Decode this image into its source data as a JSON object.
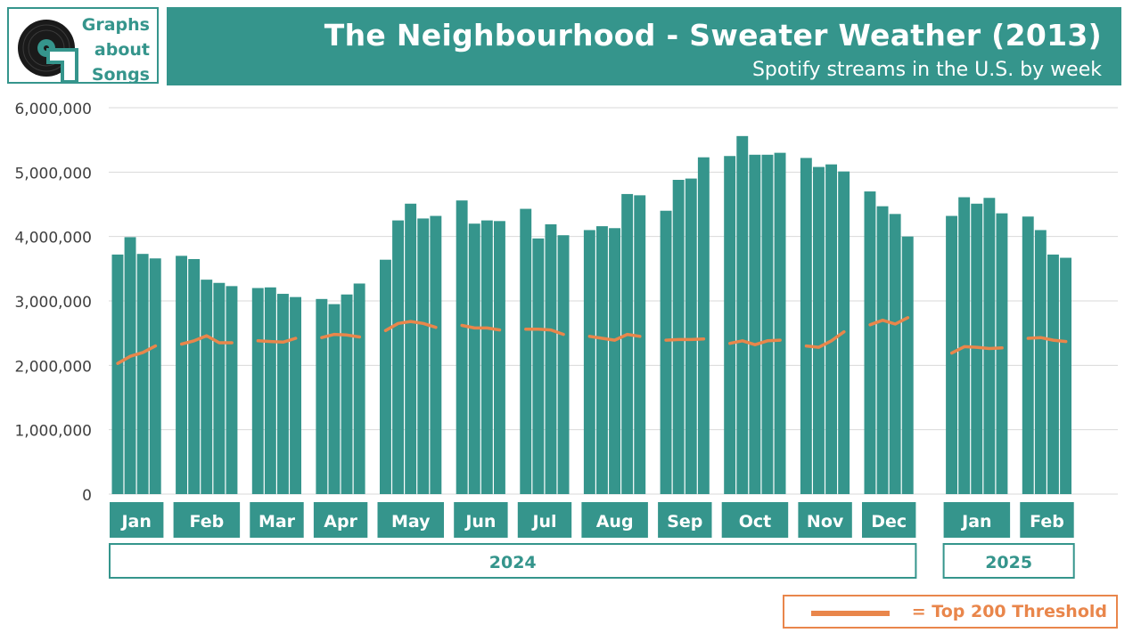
{
  "header": {
    "logo_lines": [
      "Graphs",
      "about",
      "Songs"
    ],
    "title": "The Neighbourhood - Sweater Weather (2013)",
    "subtitle": "Spotify streams in the U.S. by week"
  },
  "legend": {
    "label": "= Top 200 Threshold"
  },
  "colors": {
    "accent": "#35958c",
    "threshold": "#e9864b",
    "grid": "#d9d9d9",
    "axis_text": "#404040"
  },
  "chart_data": {
    "type": "bar",
    "title": "The Neighbourhood - Sweater Weather (2013)",
    "subtitle": "Spotify streams in the U.S. by week",
    "ylim": [
      0,
      6000000
    ],
    "yticks": [
      0,
      1000000,
      2000000,
      3000000,
      4000000,
      5000000,
      6000000
    ],
    "ytick_labels": [
      "0",
      "1,000,000",
      "2,000,000",
      "3,000,000",
      "4,000,000",
      "5,000,000",
      "6,000,000"
    ],
    "grid": true,
    "legend_position": "bottom-right",
    "years": [
      {
        "label": "2024",
        "months": 12
      },
      {
        "label": "2025",
        "months": 2
      }
    ],
    "months": [
      {
        "label": "Jan",
        "year": "2024",
        "streams": [
          3720000,
          3990000,
          3730000,
          3660000
        ],
        "threshold": [
          2030000,
          2140000,
          2200000,
          2300000
        ]
      },
      {
        "label": "Feb",
        "year": "2024",
        "streams": [
          3700000,
          3650000,
          3330000,
          3280000,
          3230000
        ],
        "threshold": [
          2330000,
          2380000,
          2460000,
          2350000,
          2350000
        ]
      },
      {
        "label": "Mar",
        "year": "2024",
        "streams": [
          3200000,
          3210000,
          3110000,
          3060000
        ],
        "threshold": [
          2380000,
          2370000,
          2360000,
          2420000
        ]
      },
      {
        "label": "Apr",
        "year": "2024",
        "streams": [
          3030000,
          2950000,
          3100000,
          3270000
        ],
        "threshold": [
          2430000,
          2480000,
          2470000,
          2440000
        ]
      },
      {
        "label": "May",
        "year": "2024",
        "streams": [
          3640000,
          4250000,
          4510000,
          4280000,
          4320000
        ],
        "threshold": [
          2540000,
          2650000,
          2680000,
          2650000,
          2590000
        ]
      },
      {
        "label": "Jun",
        "year": "2024",
        "streams": [
          4560000,
          4200000,
          4250000,
          4240000
        ],
        "threshold": [
          2620000,
          2580000,
          2580000,
          2550000
        ]
      },
      {
        "label": "Jul",
        "year": "2024",
        "streams": [
          4430000,
          3970000,
          4190000,
          4020000
        ],
        "threshold": [
          2560000,
          2560000,
          2550000,
          2480000
        ]
      },
      {
        "label": "Aug",
        "year": "2024",
        "streams": [
          4100000,
          4160000,
          4130000,
          4660000,
          4640000
        ],
        "threshold": [
          2450000,
          2420000,
          2390000,
          2480000,
          2450000
        ]
      },
      {
        "label": "Sep",
        "year": "2024",
        "streams": [
          4400000,
          4880000,
          4900000,
          5230000
        ],
        "threshold": [
          2390000,
          2400000,
          2400000,
          2410000
        ]
      },
      {
        "label": "Oct",
        "year": "2024",
        "streams": [
          5250000,
          5560000,
          5270000,
          5270000,
          5300000
        ],
        "threshold": [
          2340000,
          2380000,
          2320000,
          2380000,
          2390000
        ]
      },
      {
        "label": "Nov",
        "year": "2024",
        "streams": [
          5220000,
          5080000,
          5120000,
          5010000
        ],
        "threshold": [
          2300000,
          2280000,
          2380000,
          2520000
        ]
      },
      {
        "label": "Dec",
        "year": "2024",
        "streams": [
          4700000,
          4470000,
          4350000,
          4000000
        ],
        "threshold": [
          2630000,
          2700000,
          2640000,
          2740000
        ]
      },
      {
        "label": "Jan",
        "year": "2025",
        "streams": [
          4320000,
          4610000,
          4510000,
          4600000,
          4360000
        ],
        "threshold": [
          2190000,
          2290000,
          2280000,
          2260000,
          2270000
        ]
      },
      {
        "label": "Feb",
        "year": "2025",
        "streams": [
          4310000,
          4100000,
          3720000,
          3670000
        ],
        "threshold": [
          2420000,
          2430000,
          2390000,
          2370000
        ]
      }
    ]
  }
}
